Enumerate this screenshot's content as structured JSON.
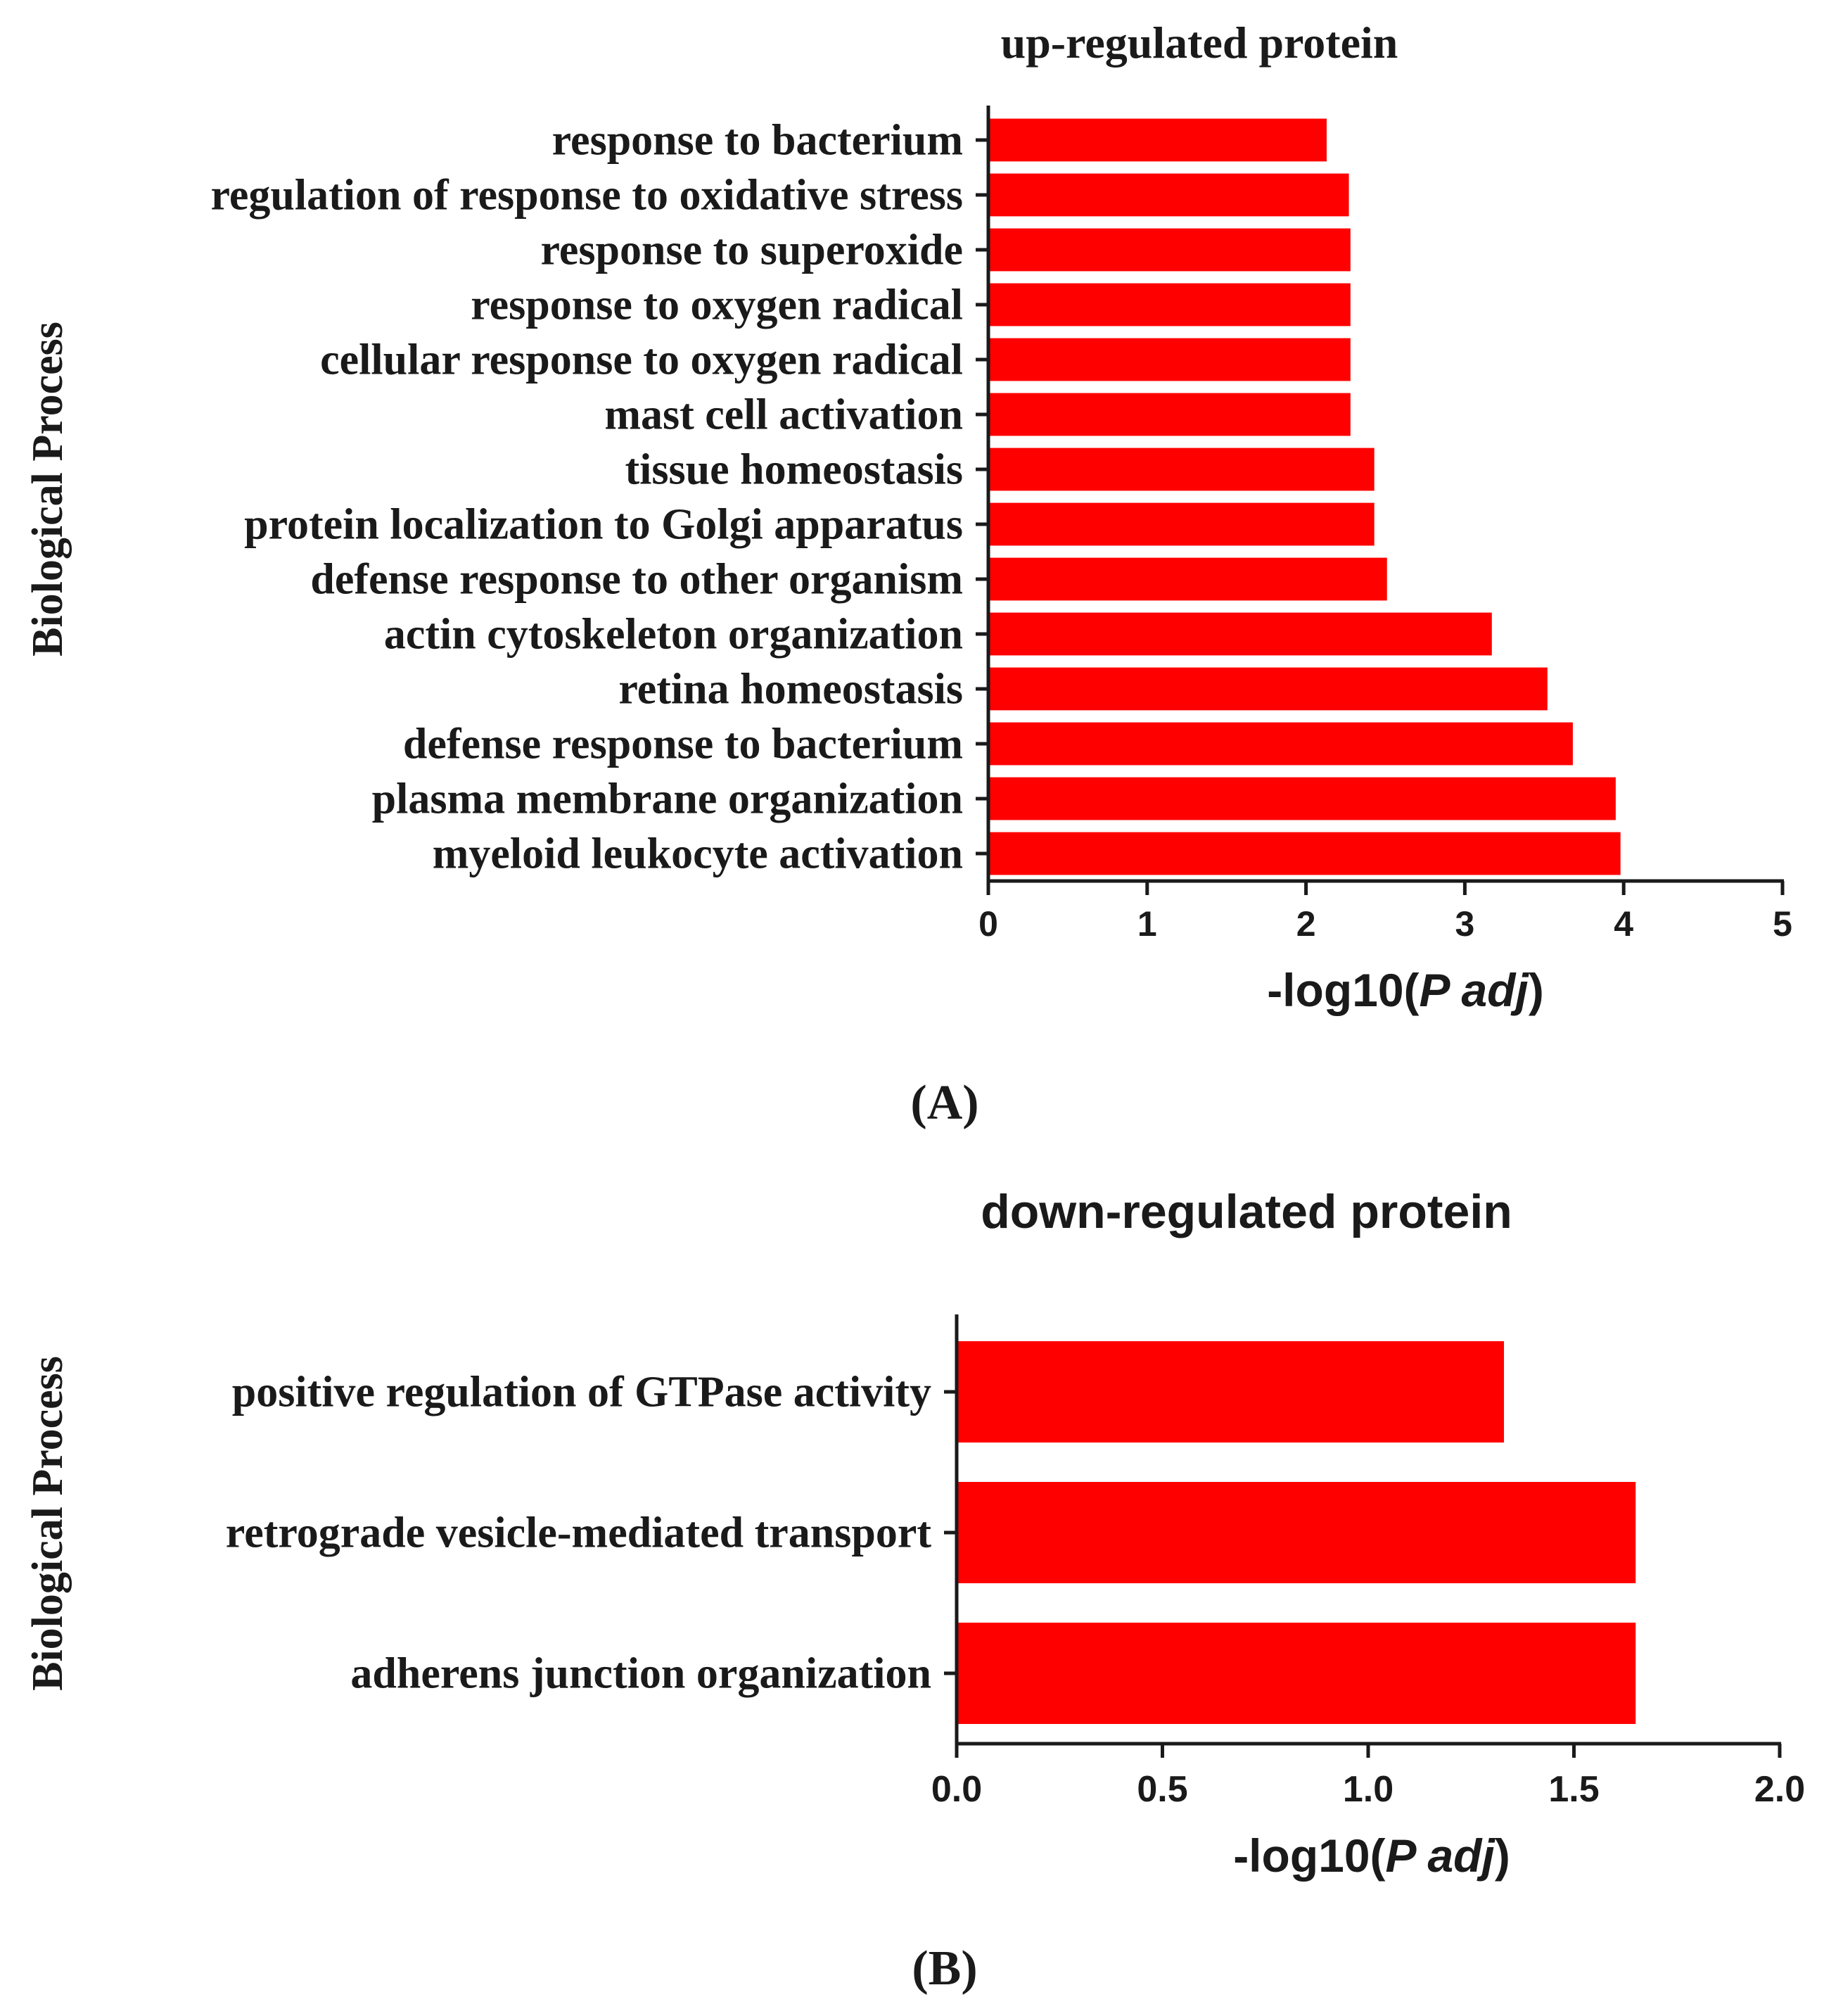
{
  "chart_data": [
    {
      "type": "bar",
      "orientation": "horizontal",
      "title": "up-regulated protein",
      "ylabel": "Biological Process",
      "xlabel_prefix": "-log10(",
      "xlabel_italic": "P adj",
      "xlabel_suffix": ")",
      "xlim": [
        0,
        5
      ],
      "xticks": [
        "0",
        "1",
        "2",
        "3",
        "4",
        "5"
      ],
      "xtick_values": [
        0,
        1,
        2,
        3,
        4,
        5
      ],
      "bar_color": "#ff0000",
      "categories": [
        "response to bacterium",
        "regulation of response to oxidative stress",
        "response to superoxide",
        "response to oxygen radical",
        "cellular response to oxygen radical",
        "mast cell activation",
        "tissue homeostasis",
        "protein localization to Golgi apparatus",
        "defense response to other organism",
        "actin cytoskeleton organization",
        "retina homeostasis",
        "defense response to bacterium",
        "plasma membrane organization",
        "myeloid leukocyte activation"
      ],
      "values": [
        2.13,
        2.27,
        2.28,
        2.28,
        2.28,
        2.28,
        2.43,
        2.43,
        2.51,
        3.17,
        3.52,
        3.68,
        3.95,
        3.98
      ],
      "panel_label": "(A)"
    },
    {
      "type": "bar",
      "orientation": "horizontal",
      "title": "down-regulated protein",
      "ylabel": "Biological Process",
      "xlabel_prefix": "-log10(",
      "xlabel_italic": "P adj",
      "xlabel_suffix": ")",
      "xlim": [
        0,
        2
      ],
      "xticks": [
        "0.0",
        "0.5",
        "1.0",
        "1.5",
        "2.0"
      ],
      "xtick_values": [
        0,
        0.5,
        1,
        1.5,
        2
      ],
      "bar_color": "#ff0000",
      "categories": [
        "positive regulation of GTPase activity",
        "retrograde vesicle-mediated transport",
        "adherens junction organization"
      ],
      "values": [
        1.33,
        1.65,
        1.65
      ],
      "panel_label": "(B)"
    }
  ]
}
